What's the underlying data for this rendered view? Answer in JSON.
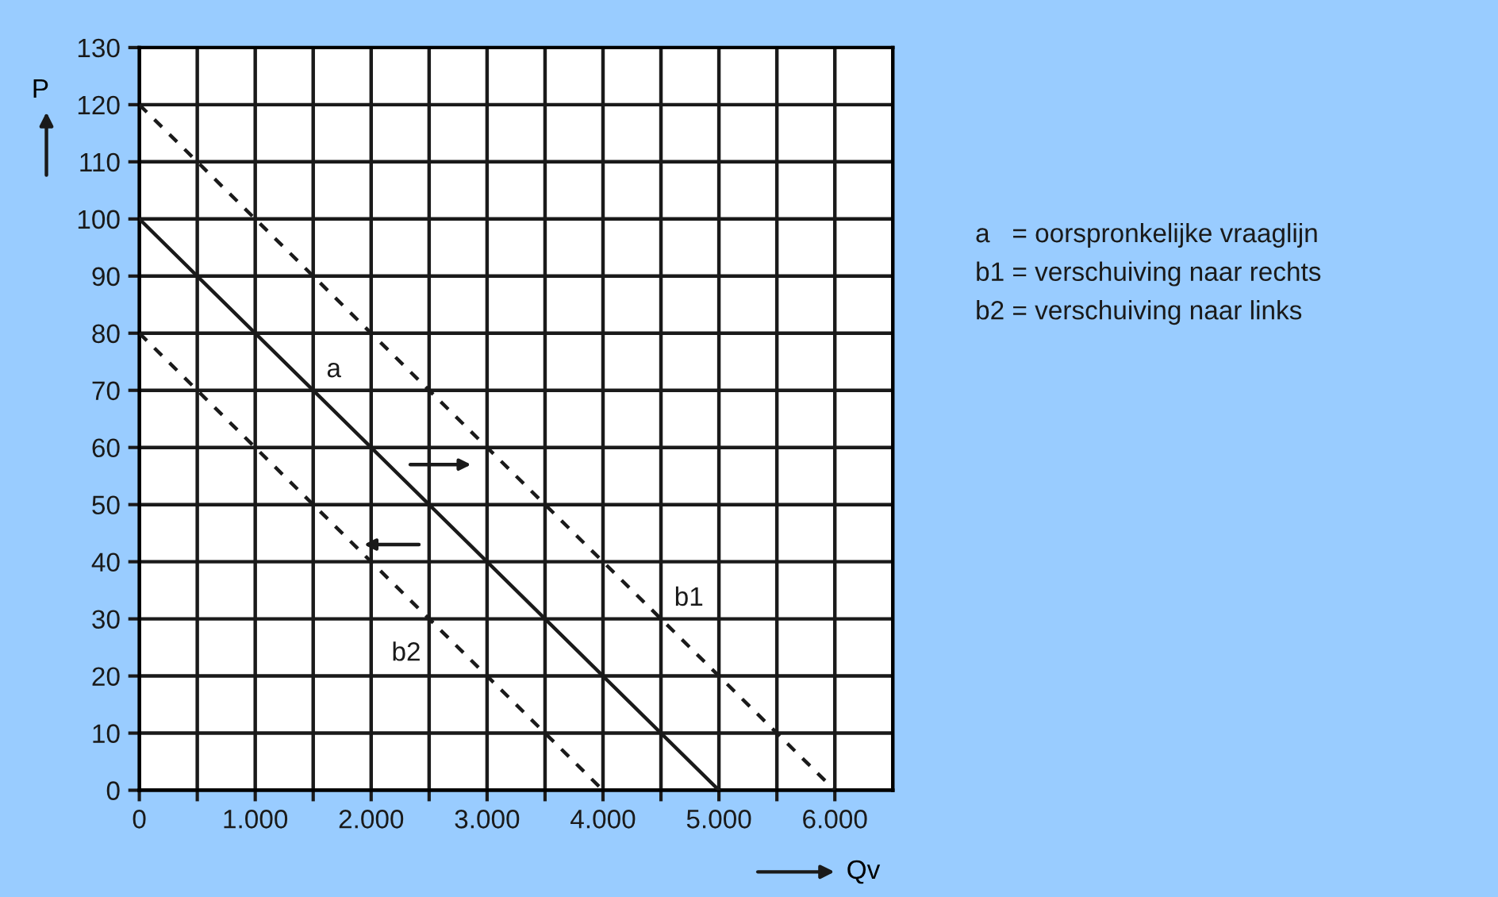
{
  "chart_data": {
    "type": "line",
    "xlabel": "Qv",
    "ylabel": "P",
    "series": [
      {
        "name": "a",
        "color": "#1a1a1a",
        "line_style": "solid",
        "x": [
          0,
          5000
        ],
        "values": [
          100,
          0
        ]
      },
      {
        "name": "b1",
        "color": "#1a1a1a",
        "line_style": "dashed",
        "x": [
          0,
          6000
        ],
        "values": [
          120,
          0
        ]
      },
      {
        "name": "b2",
        "color": "#1a1a1a",
        "line_style": "dashed",
        "x": [
          0,
          4000
        ],
        "values": [
          80,
          0
        ]
      }
    ],
    "xlim": [
      0,
      6500
    ],
    "ylim": [
      0,
      130
    ],
    "xticks": [
      0,
      {
        "value": 500,
        "label": null
      },
      {
        "value": 1000,
        "label": "1.000"
      },
      {
        "value": 1500,
        "label": null
      },
      {
        "value": 2000,
        "label": "2.000"
      },
      {
        "value": 2500,
        "label": null
      },
      {
        "value": 3000,
        "label": "3.000"
      },
      {
        "value": 3500,
        "label": null
      },
      {
        "value": 4000,
        "label": "4.000"
      },
      {
        "value": 4500,
        "label": null
      },
      {
        "value": 5000,
        "label": "5.000"
      },
      {
        "value": 5500,
        "label": null
      },
      {
        "value": 6000,
        "label": "6.000"
      }
    ],
    "yticks": [
      0,
      10,
      20,
      30,
      40,
      50,
      60,
      70,
      80,
      90,
      100,
      110,
      120,
      130
    ],
    "grid": true,
    "marker": "none",
    "legend": false,
    "annotations": [
      "a   = oorspronkelijke vraaglijn",
      "b1 = verschuiving naar rechts",
      "b2 = verschuiving naar links"
    ]
  }
}
